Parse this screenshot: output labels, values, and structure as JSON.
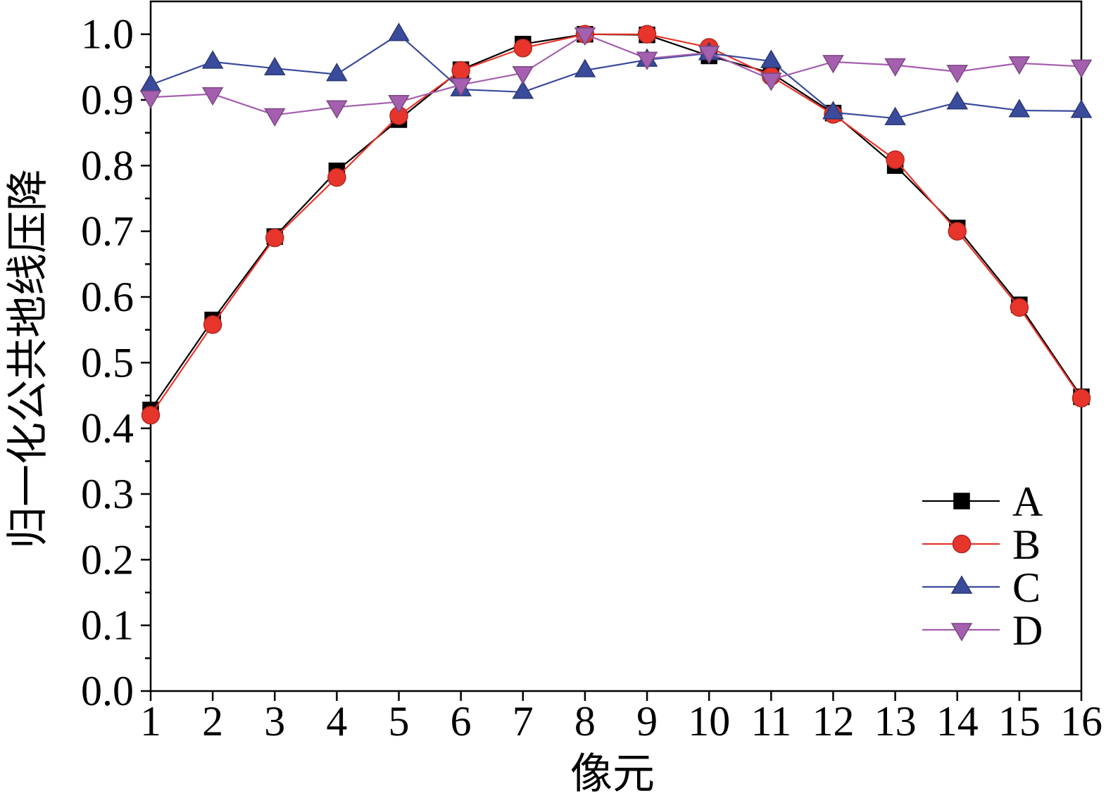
{
  "chart_data": {
    "type": "line",
    "xlabel": "像元",
    "ylabel": "归一化公共地线压降",
    "x": [
      1,
      2,
      3,
      4,
      5,
      6,
      7,
      8,
      9,
      10,
      11,
      12,
      13,
      14,
      15,
      16
    ],
    "xlim": [
      1,
      16
    ],
    "ylim": [
      0,
      1.05
    ],
    "xticks": [
      1,
      2,
      3,
      4,
      5,
      6,
      7,
      8,
      9,
      10,
      11,
      12,
      13,
      14,
      15,
      16
    ],
    "xtick_labels": [
      "1",
      "2",
      "3",
      "4",
      "5",
      "6",
      "7",
      "8",
      "9",
      "10",
      "11",
      "12",
      "13",
      "14",
      "15",
      "16"
    ],
    "yticks": [
      0.0,
      0.1,
      0.2,
      0.3,
      0.4,
      0.5,
      0.6,
      0.7,
      0.8,
      0.9,
      1.0
    ],
    "ytick_labels": [
      "0.0",
      "0.1",
      "0.2",
      "0.3",
      "0.4",
      "0.5",
      "0.6",
      "0.7",
      "0.8",
      "0.9",
      "1.0"
    ],
    "grid": false,
    "legend": "bottom-right",
    "series": [
      {
        "name": "A",
        "marker": "square",
        "color": "#000000",
        "values": [
          0.428,
          0.565,
          0.692,
          0.792,
          0.87,
          0.946,
          0.985,
          1.0,
          0.999,
          0.967,
          0.941,
          0.88,
          0.8,
          0.705,
          0.588,
          0.448
        ]
      },
      {
        "name": "B",
        "marker": "circle",
        "color": "#e8352b",
        "values": [
          0.42,
          0.558,
          0.69,
          0.782,
          0.876,
          0.945,
          0.979,
          1.0,
          1.0,
          0.98,
          0.936,
          0.878,
          0.809,
          0.7,
          0.584,
          0.446
        ]
      },
      {
        "name": "C",
        "marker": "triangle-up",
        "color": "#3a4b9b",
        "values": [
          0.923,
          0.958,
          0.948,
          0.939,
          1.0,
          0.916,
          0.912,
          0.945,
          0.961,
          0.971,
          0.959,
          0.881,
          0.872,
          0.896,
          0.884,
          0.883
        ]
      },
      {
        "name": "D",
        "marker": "triangle-down",
        "color": "#a45fae",
        "values": [
          0.904,
          0.909,
          0.877,
          0.889,
          0.897,
          0.923,
          0.941,
          1.0,
          0.963,
          0.972,
          0.931,
          0.958,
          0.953,
          0.943,
          0.956,
          0.951
        ]
      }
    ]
  }
}
